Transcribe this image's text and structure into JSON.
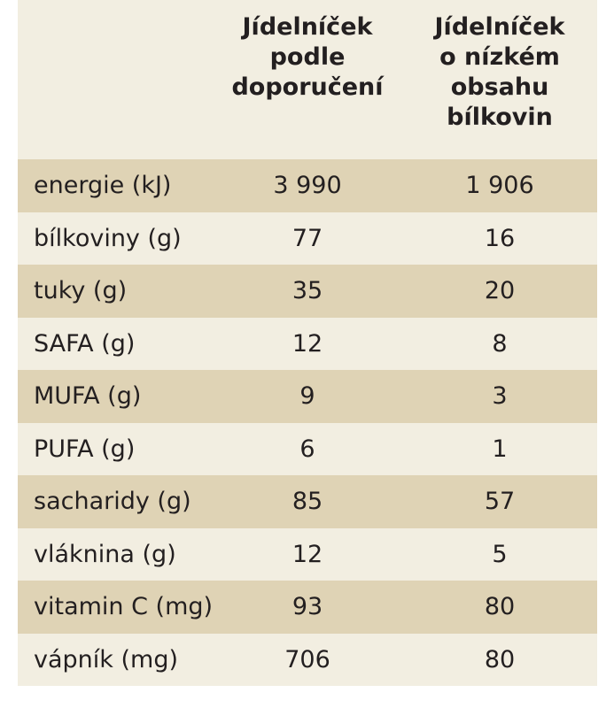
{
  "table": {
    "headers": [
      "",
      "Jídelníček\npodle\ndoporučení",
      "Jídelníček\no nízkém\nobsahu\nbílkovin"
    ],
    "rows": [
      {
        "label": "energie (kJ)",
        "v1": "3 990",
        "v2": "1 906"
      },
      {
        "label": "bílkoviny (g)",
        "v1": "77",
        "v2": "16"
      },
      {
        "label": "tuky (g)",
        "v1": "35",
        "v2": "20"
      },
      {
        "label": "SAFA (g)",
        "v1": "12",
        "v2": "8"
      },
      {
        "label": "MUFA (g)",
        "v1": "9",
        "v2": "3"
      },
      {
        "label": "PUFA (g)",
        "v1": "6",
        "v2": "1"
      },
      {
        "label": "sacharidy (g)",
        "v1": "85",
        "v2": "57"
      },
      {
        "label": "vláknina (g)",
        "v1": "12",
        "v2": "5"
      },
      {
        "label": "vitamin C (mg)",
        "v1": "93",
        "v2": "80"
      },
      {
        "label": "vápník (mg)",
        "v1": "706",
        "v2": "80"
      }
    ]
  },
  "colors": {
    "shaded_row": "#dfd3b5",
    "light_row": "#f2eee1",
    "text": "#231f20"
  }
}
